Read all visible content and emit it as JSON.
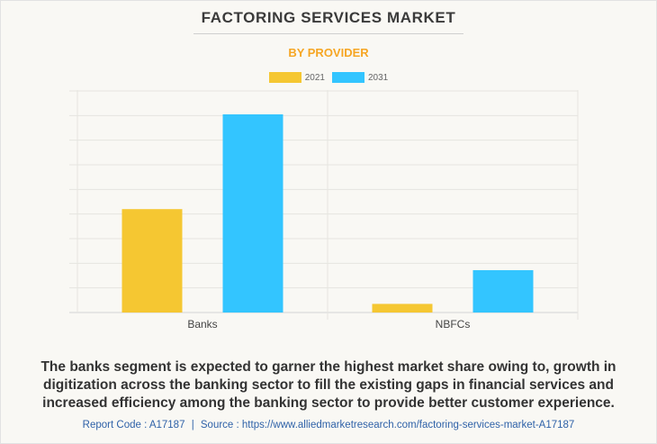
{
  "header": {
    "title": "FACTORING SERVICES MARKET",
    "subtitle": "BY PROVIDER"
  },
  "colors": {
    "title": "#3a3a3a",
    "subtitle": "#f6a623",
    "series_2021": "#f5c732",
    "series_2031": "#33c5ff",
    "footer": "#2f62a8"
  },
  "chart_data": {
    "type": "bar",
    "title": "FACTORING SERVICES MARKET",
    "subtitle": "BY PROVIDER",
    "categories": [
      "Banks",
      "NBFCs"
    ],
    "series": [
      {
        "name": "2021",
        "values": [
          4.2,
          0.35
        ]
      },
      {
        "name": "2031",
        "values": [
          8.05,
          1.72
        ]
      }
    ],
    "ylim": [
      0,
      9
    ],
    "xlabel": "",
    "ylabel": "",
    "grid": true,
    "legend_position": "top-center",
    "y_tick_labels_shown": false
  },
  "description": "The banks segment is expected to garner the highest market share owing to, growth in digitization across the banking sector to fill the existing gaps in financial services and increased efficiency among the banking sector to provide better customer experience.",
  "footer": {
    "report_code": "Report Code : A17187",
    "separator": "|",
    "source": "Source : https://www.alliedmarketresearch.com/factoring-services-market-A17187"
  }
}
